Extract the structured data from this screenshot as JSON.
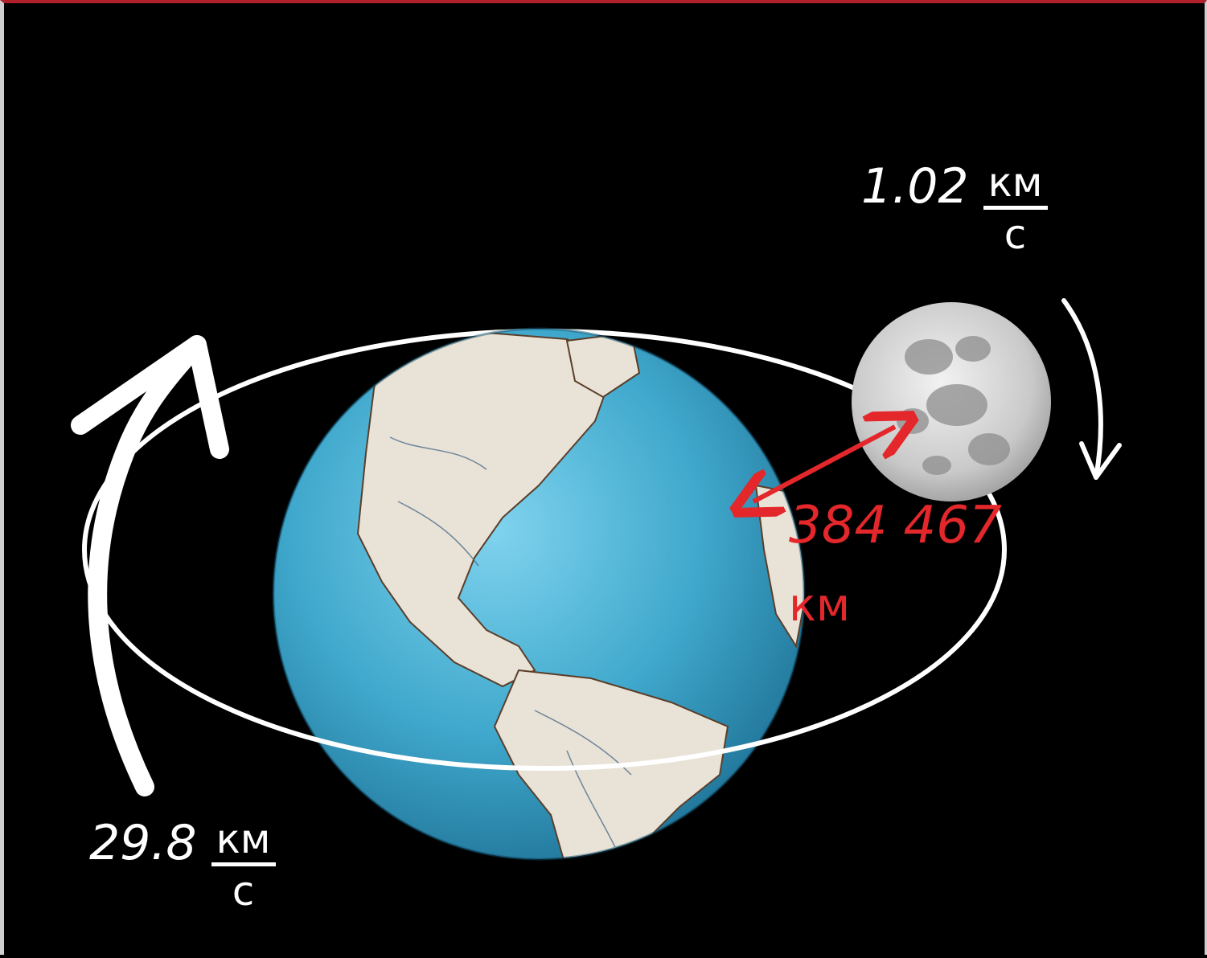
{
  "diagram": {
    "earth_speed": {
      "value": "29.8",
      "unit_numerator": "км",
      "unit_denominator": "с"
    },
    "moon_speed": {
      "value": "1.02",
      "unit_numerator": "км",
      "unit_denominator": "с"
    },
    "distance": {
      "value": "384 467",
      "unit": "км"
    }
  },
  "colors": {
    "background": "#000000",
    "ocean": "#3fa8cc",
    "land": "#e9e2d6",
    "moon": "#c8c8c8",
    "orbit": "#ffffff",
    "distance_arrow": "#e3272b"
  },
  "icons": [
    "earth-globe-icon",
    "moon-icon",
    "orbit-direction-arrow-icon",
    "distance-arrow-icon"
  ]
}
